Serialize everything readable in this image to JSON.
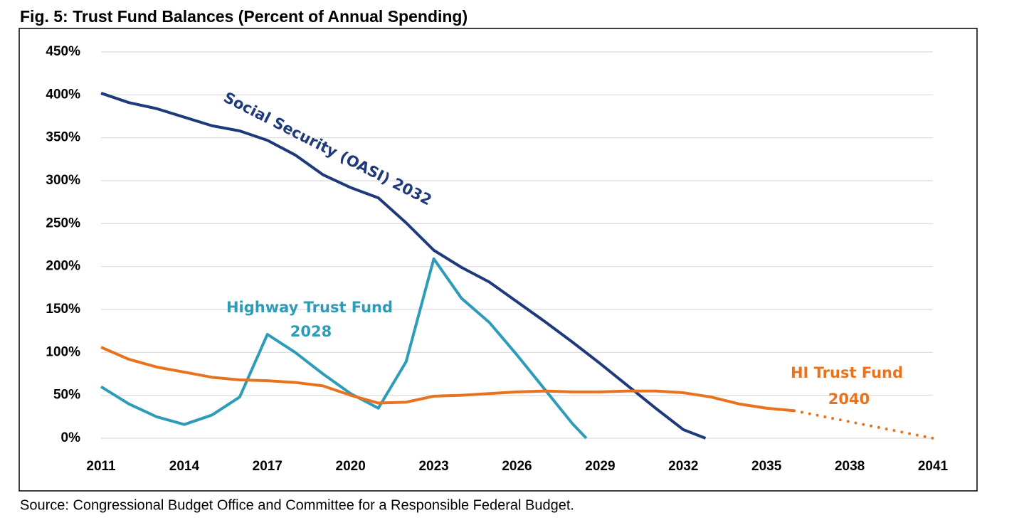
{
  "chart_data": {
    "type": "line",
    "title": "Fig. 5: Trust Fund Balances (Percent of Annual Spending)",
    "source": "Source: Congressional Budget Office and Committee for a Responsible Federal Budget.",
    "xlim": [
      2011,
      2041
    ],
    "xticks": [
      2011,
      2014,
      2017,
      2020,
      2023,
      2026,
      2029,
      2032,
      2035,
      2038,
      2041
    ],
    "ylim": [
      0,
      450
    ],
    "yticks": [
      {
        "value": 0,
        "label": "0%"
      },
      {
        "value": 50,
        "label": "50%"
      },
      {
        "value": 100,
        "label": "100%"
      },
      {
        "value": 150,
        "label": "150%"
      },
      {
        "value": 200,
        "label": "200%"
      },
      {
        "value": 250,
        "label": "250%"
      },
      {
        "value": 300,
        "label": "300%"
      },
      {
        "value": 350,
        "label": "350%"
      },
      {
        "value": 400,
        "label": "400%"
      },
      {
        "value": 450,
        "label": "450%"
      }
    ],
    "grid": true,
    "series": [
      {
        "labels": [
          "Social Security (OASI) 2032"
        ],
        "color": "#1f3a7a",
        "x": [
          2011,
          2012,
          2013,
          2014,
          2015,
          2016,
          2017,
          2018,
          2019,
          2020,
          2021,
          2022,
          2023,
          2024,
          2025,
          2026,
          2027,
          2028,
          2029,
          2030,
          2031,
          2032,
          2032.8
        ],
        "values": [
          402,
          391,
          384,
          374,
          364,
          358,
          347,
          330,
          307,
          292,
          280,
          251,
          219,
          199,
          182,
          159,
          136,
          112,
          87,
          61,
          35,
          10,
          0
        ]
      },
      {
        "labels": [
          "Highway Trust Fund",
          "2028"
        ],
        "color": "#2e9cb8",
        "x": [
          2011,
          2012,
          2013,
          2014,
          2015,
          2016,
          2017,
          2018,
          2019,
          2020,
          2021,
          2022,
          2023,
          2024,
          2025,
          2026,
          2027,
          2028,
          2028.5
        ],
        "values": [
          60,
          40,
          25,
          16,
          27,
          48,
          121,
          100,
          75,
          52,
          35,
          89,
          209,
          163,
          135,
          97,
          57,
          17,
          0
        ]
      },
      {
        "labels": [
          "HI Trust Fund",
          "2040"
        ],
        "color": "#e8731e",
        "dotted_from_index": 25,
        "x": [
          2011,
          2012,
          2013,
          2014,
          2015,
          2016,
          2017,
          2018,
          2019,
          2020,
          2021,
          2022,
          2023,
          2024,
          2025,
          2026,
          2027,
          2028,
          2029,
          2030,
          2031,
          2032,
          2033,
          2034,
          2035,
          2036,
          2041
        ],
        "values": [
          106,
          92,
          83,
          77,
          71,
          68,
          67,
          65,
          61,
          50,
          41,
          42,
          49,
          50,
          52,
          54,
          55,
          54,
          54,
          55,
          55,
          53,
          48,
          40,
          35,
          32,
          0
        ]
      }
    ]
  }
}
